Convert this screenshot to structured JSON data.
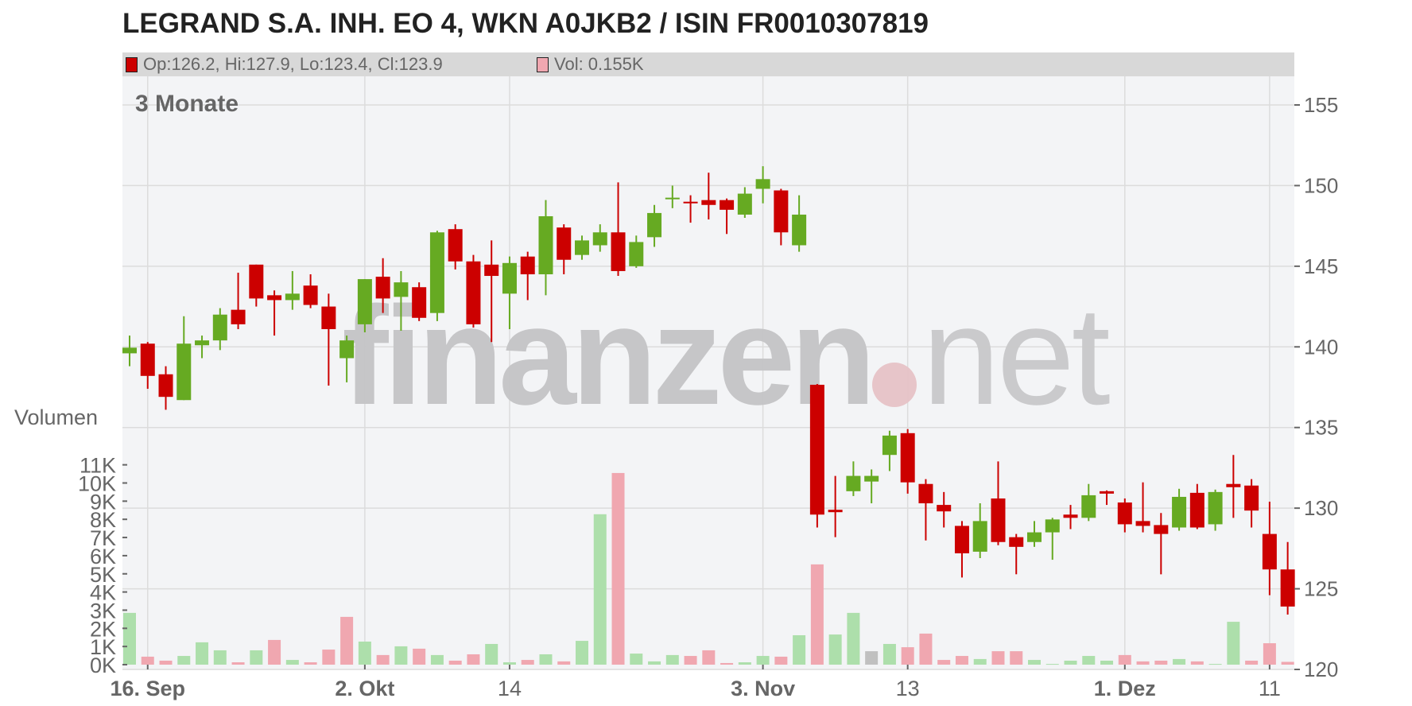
{
  "title": "LEGRAND S.A. INH. EO 4, WKN A0JKB2 / ISIN FR0010307819",
  "legend": {
    "ohlc_text": "Op:126.2, Hi:127.9, Lo:123.4, Cl:123.9",
    "vol_text": "Vol: 0.155K"
  },
  "colors": {
    "up": "#66aa22",
    "down": "#cc0000",
    "vol_up": "#addfab",
    "vol_down": "#f0a7b0",
    "vol_flat": "#c0c0c0",
    "plot_bg": "#f3f4f6",
    "grid": "#dcdcdc"
  },
  "chart_data": {
    "type": "candlestick",
    "period_label": "3 Monate",
    "price_axis": {
      "ylim": [
        120,
        155
      ],
      "ticks": [
        "120",
        "125",
        "130",
        "135",
        "140",
        "145",
        "150",
        "155"
      ]
    },
    "volume_axis": {
      "label": "Volumen",
      "ylim_k": [
        0,
        11
      ],
      "ticks": [
        "0K",
        "1K",
        "2K",
        "3K",
        "4K",
        "5K",
        "6K",
        "7K",
        "8K",
        "9K",
        "10K",
        "11K"
      ]
    },
    "x_ticks": [
      {
        "label": "16. Sep",
        "index": 1,
        "bold": true
      },
      {
        "label": "2. Okt",
        "index": 13,
        "bold": true
      },
      {
        "label": "14",
        "index": 21,
        "bold": false
      },
      {
        "label": "3. Nov",
        "index": 35,
        "bold": true
      },
      {
        "label": "13",
        "index": 43,
        "bold": false
      },
      {
        "label": "1. Dez",
        "index": 55,
        "bold": true
      },
      {
        "label": "11",
        "index": 63,
        "bold": false
      }
    ],
    "grid": true,
    "candle_fields": [
      "open",
      "high",
      "low",
      "close",
      "volume_k"
    ],
    "candles": [
      [
        139.6,
        140.7,
        138.8,
        139.95,
        2.85
      ],
      [
        140.2,
        140.3,
        137.4,
        138.2,
        0.44
      ],
      [
        138.3,
        138.8,
        136.1,
        136.9,
        0.22
      ],
      [
        136.7,
        141.9,
        136.7,
        140.2,
        0.48
      ],
      [
        140.1,
        140.7,
        139.3,
        140.4,
        1.23
      ],
      [
        140.4,
        142.4,
        139.8,
        142.0,
        0.79
      ],
      [
        142.3,
        144.6,
        141.1,
        141.4,
        0.13
      ],
      [
        145.1,
        145.1,
        142.5,
        143.0,
        0.79
      ],
      [
        143.2,
        143.5,
        140.7,
        142.9,
        1.36
      ],
      [
        142.9,
        144.7,
        142.3,
        143.3,
        0.26
      ],
      [
        143.8,
        144.5,
        142.4,
        142.6,
        0.13
      ],
      [
        142.5,
        143.3,
        137.6,
        141.1,
        0.83
      ],
      [
        139.3,
        140.7,
        137.8,
        140.4,
        2.63
      ],
      [
        141.4,
        144.2,
        140.9,
        144.2,
        1.27
      ],
      [
        144.35,
        145.5,
        142.1,
        143.0,
        0.53
      ],
      [
        143.1,
        144.7,
        141.0,
        144.0,
        1.01
      ],
      [
        143.7,
        144.0,
        141.6,
        141.8,
        0.88
      ],
      [
        142.1,
        147.2,
        141.6,
        147.1,
        0.53
      ],
      [
        147.3,
        147.6,
        144.8,
        145.3,
        0.22
      ],
      [
        145.3,
        145.7,
        141.2,
        141.4,
        0.57
      ],
      [
        145.1,
        146.6,
        140.3,
        144.4,
        1.14
      ],
      [
        143.3,
        145.6,
        141.1,
        145.2,
        0.13
      ],
      [
        145.6,
        145.9,
        142.9,
        144.5,
        0.26
      ],
      [
        144.5,
        149.1,
        143.2,
        148.1,
        0.57
      ],
      [
        147.4,
        147.6,
        144.5,
        145.4,
        0.18
      ],
      [
        145.7,
        146.9,
        145.4,
        146.6,
        1.31
      ],
      [
        146.3,
        147.6,
        145.9,
        147.1,
        8.28
      ],
      [
        147.1,
        150.2,
        144.4,
        144.7,
        10.55
      ],
      [
        145.0,
        146.9,
        144.9,
        146.5,
        0.61
      ],
      [
        146.8,
        148.8,
        146.2,
        148.3,
        0.18
      ],
      [
        149.2,
        150.0,
        148.6,
        149.25,
        0.53
      ],
      [
        149.0,
        149.4,
        147.7,
        148.9,
        0.48
      ],
      [
        149.1,
        150.8,
        147.9,
        148.8,
        0.79
      ],
      [
        149.1,
        149.2,
        147.0,
        148.5,
        0.09
      ],
      [
        148.2,
        149.9,
        148.0,
        149.5,
        0.13
      ],
      [
        149.8,
        151.2,
        148.9,
        150.4,
        0.48
      ],
      [
        149.7,
        149.8,
        146.3,
        147.1,
        0.44
      ],
      [
        146.3,
        149.4,
        145.9,
        148.2,
        1.62
      ],
      [
        137.65,
        137.7,
        128.8,
        129.6,
        5.52
      ],
      [
        129.9,
        132.0,
        128.2,
        129.75,
        1.66
      ],
      [
        131.05,
        132.9,
        130.75,
        132.0,
        2.85
      ],
      [
        131.65,
        132.4,
        130.3,
        132.0,
        0.74
      ],
      [
        133.3,
        134.8,
        132.3,
        134.5,
        1.14
      ],
      [
        134.65,
        134.9,
        130.9,
        131.6,
        0.96
      ],
      [
        131.5,
        131.8,
        128.0,
        130.3,
        1.71
      ],
      [
        130.2,
        131.0,
        128.8,
        129.8,
        0.26
      ],
      [
        128.9,
        129.2,
        125.7,
        127.2,
        0.48
      ],
      [
        127.3,
        130.3,
        126.9,
        129.2,
        0.31
      ],
      [
        130.6,
        132.9,
        127.7,
        127.9,
        0.74
      ],
      [
        128.2,
        128.4,
        125.9,
        127.6,
        0.74
      ],
      [
        127.9,
        129.2,
        127.6,
        128.5,
        0.26
      ],
      [
        128.5,
        129.4,
        126.8,
        129.3,
        0.04
      ],
      [
        129.6,
        130.2,
        128.7,
        129.4,
        0.22
      ],
      [
        129.4,
        131.5,
        129.2,
        130.8,
        0.48
      ],
      [
        131.05,
        131.1,
        130.2,
        130.9,
        0.22
      ],
      [
        130.35,
        130.6,
        128.5,
        129.0,
        0.53
      ],
      [
        129.2,
        131.6,
        128.5,
        128.9,
        0.18
      ],
      [
        128.95,
        129.7,
        125.9,
        128.4,
        0.22
      ],
      [
        128.8,
        131.2,
        128.6,
        130.7,
        0.31
      ],
      [
        130.95,
        131.5,
        128.7,
        128.8,
        0.18
      ],
      [
        129.0,
        131.15,
        128.6,
        131.0,
        0.04
      ],
      [
        131.5,
        133.3,
        129.4,
        131.3,
        2.36
      ],
      [
        131.4,
        131.8,
        128.8,
        129.85,
        0.22
      ],
      [
        128.4,
        130.4,
        124.6,
        126.2,
        1.18
      ],
      [
        126.2,
        127.9,
        123.4,
        123.9,
        0.155
      ]
    ]
  },
  "watermark": {
    "brand": "finanzen",
    "suffix": "net"
  }
}
